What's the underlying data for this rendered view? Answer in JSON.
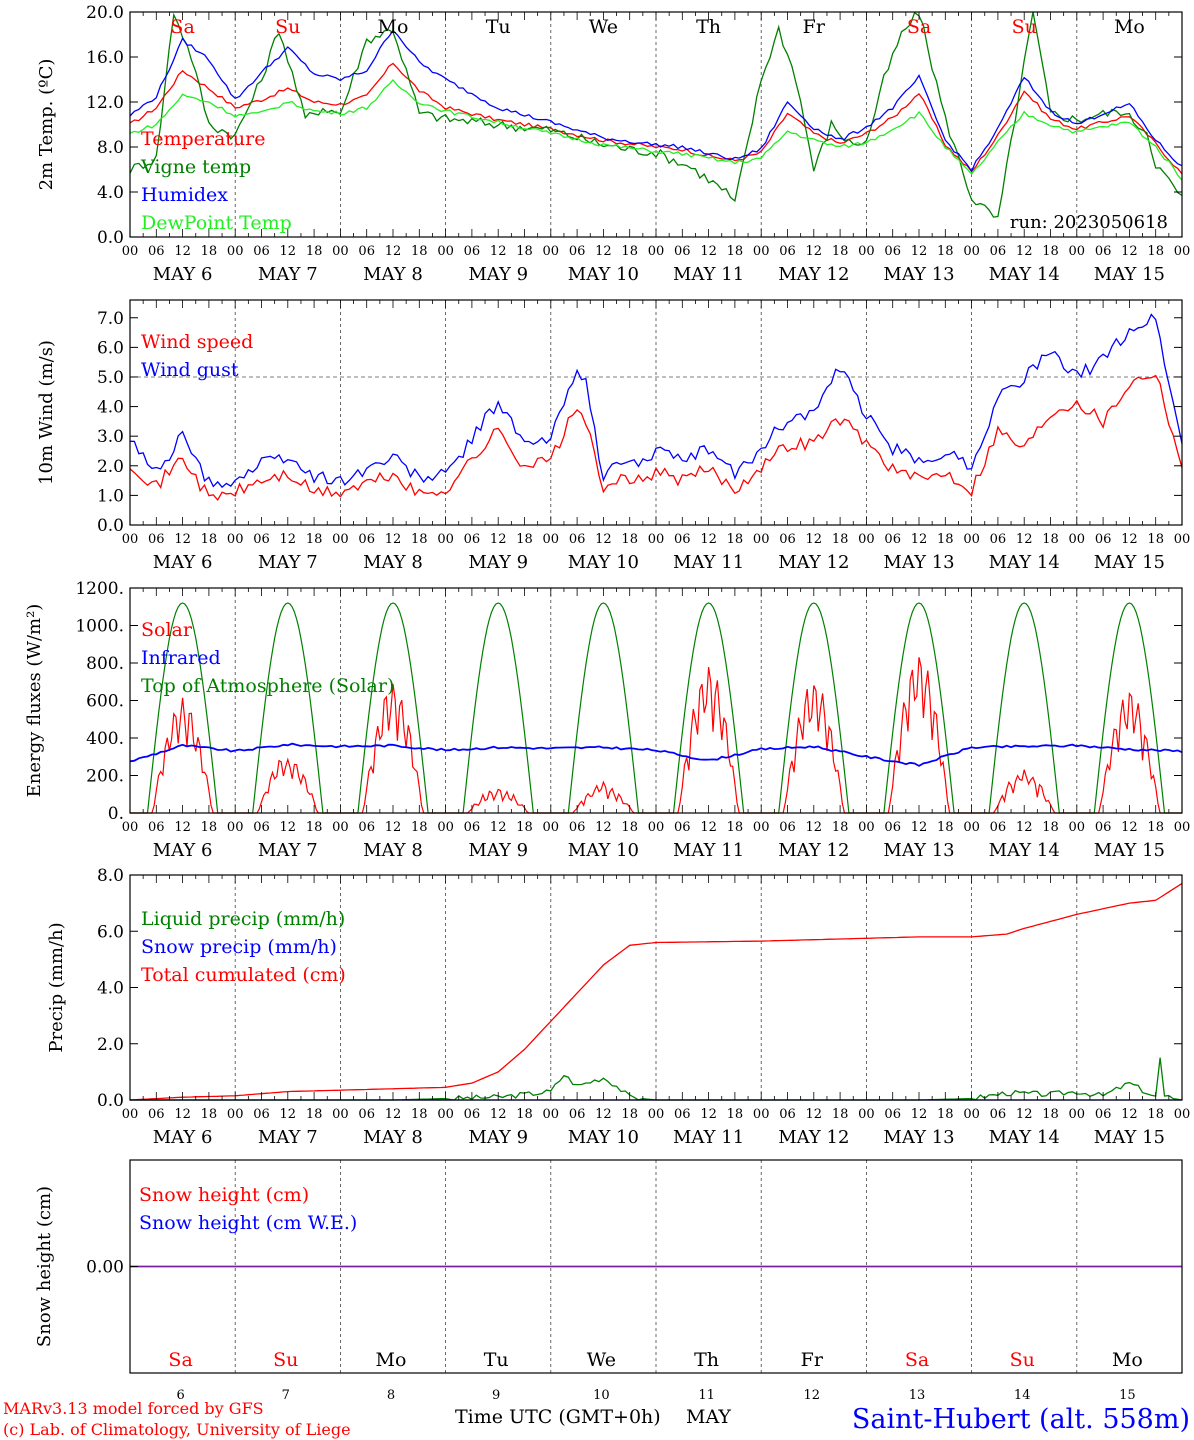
{
  "run_label": "run: 2023050618",
  "footer": {
    "model_line": "MARv3.13 model forced by GFS",
    "credit_line": "(c) Lab. of Climatology, University of Liege",
    "xaxis_title": "Time UTC (GMT+0h)",
    "month": "MAY",
    "station": "Saint-Hubert (alt. 558m)"
  },
  "days": [
    {
      "abbr": "Sa",
      "date": "6",
      "weekend": true
    },
    {
      "abbr": "Su",
      "date": "7",
      "weekend": true
    },
    {
      "abbr": "Mo",
      "date": "8",
      "weekend": false
    },
    {
      "abbr": "Tu",
      "date": "9",
      "weekend": false
    },
    {
      "abbr": "We",
      "date": "10",
      "weekend": false
    },
    {
      "abbr": "Th",
      "date": "11",
      "weekend": false
    },
    {
      "abbr": "Fr",
      "date": "12",
      "weekend": false
    },
    {
      "abbr": "Sa",
      "date": "13",
      "weekend": true
    },
    {
      "abbr": "Su",
      "date": "14",
      "weekend": true
    },
    {
      "abbr": "Mo",
      "date": "15",
      "weekend": false
    }
  ],
  "hour_ticks": [
    "00",
    "06",
    "12",
    "18"
  ],
  "date_labels": [
    "MAY  6",
    "MAY  7",
    "MAY  8",
    "MAY  9",
    "MAY 10",
    "MAY 11",
    "MAY 12",
    "MAY 13",
    "MAY 14",
    "MAY 15"
  ],
  "colors": {
    "red": "#ff0000",
    "green": "#008000",
    "blue": "#0000ff",
    "lightgreen": "#22ee22",
    "purple": "#7a1fa2"
  },
  "chart_data": [
    {
      "type": "line",
      "ylabel": "2m Temp. (ºC)",
      "ylim": [
        0,
        20
      ],
      "yticks": [
        "0.0",
        "4.0",
        "8.0",
        "12.0",
        "16.0",
        "20.0"
      ],
      "ytick_values": [
        0,
        4,
        8,
        12,
        16,
        20
      ],
      "x_unit": "hours since May 6 00 UTC",
      "series": [
        {
          "name": "Temperature",
          "color": "#ff0000",
          "x": [
            0,
            6,
            12,
            18,
            24,
            30,
            36,
            42,
            48,
            54,
            60,
            66,
            72,
            84,
            96,
            108,
            120,
            126,
            132,
            138,
            144,
            150,
            156,
            162,
            168,
            174,
            180,
            186,
            192,
            198,
            204,
            210,
            216,
            222,
            228,
            234,
            240
          ],
          "y": [
            10,
            11.5,
            14.8,
            13.2,
            11.5,
            12.2,
            13.2,
            12.0,
            11.8,
            12.5,
            15.5,
            13.0,
            11.5,
            10.4,
            9.6,
            8.6,
            8.0,
            7.8,
            7.2,
            6.8,
            7.5,
            11.0,
            9.2,
            8.3,
            9.2,
            10.6,
            12.8,
            8.2,
            5.8,
            9.0,
            13.0,
            10.5,
            9.6,
            10.2,
            10.8,
            8.3,
            5.6
          ]
        },
        {
          "name": "Vigne temp",
          "color": "#008000",
          "x": [
            0,
            6,
            10,
            14,
            18,
            24,
            30,
            34,
            40,
            44,
            48,
            54,
            60,
            66,
            72,
            84,
            96,
            108,
            114,
            120,
            128,
            136,
            138,
            144,
            148,
            152,
            156,
            160,
            164,
            168,
            172,
            176,
            180,
            186,
            192,
            198,
            206,
            210,
            216,
            220,
            226,
            232,
            234,
            240
          ],
          "y": [
            6,
            7,
            20,
            16,
            10,
            9,
            14,
            18.5,
            10.5,
            11.5,
            11.0,
            17.5,
            18.5,
            11.0,
            10.5,
            10.0,
            9.5,
            8.2,
            7.8,
            7.5,
            6.2,
            4.0,
            3.0,
            14,
            18.5,
            14,
            6,
            10,
            8.4,
            8.4,
            14,
            18,
            20,
            10.5,
            3.5,
            1.5,
            20,
            11,
            10.4,
            10.8,
            11.2,
            9.4,
            6.5,
            3.5
          ]
        },
        {
          "name": "Humidex",
          "color": "#0000ff",
          "x": [
            0,
            6,
            12,
            18,
            24,
            30,
            36,
            42,
            48,
            54,
            60,
            66,
            72,
            84,
            96,
            108,
            120,
            126,
            132,
            138,
            144,
            150,
            156,
            162,
            168,
            174,
            180,
            186,
            192,
            198,
            204,
            210,
            216,
            222,
            228,
            234,
            240
          ],
          "y": [
            10.8,
            12.5,
            17.5,
            15.8,
            12.2,
            14.6,
            16.8,
            14.5,
            14.0,
            14.8,
            18.5,
            15.5,
            14.0,
            11.5,
            10.2,
            8.8,
            8.2,
            8.0,
            7.4,
            6.9,
            7.8,
            12.0,
            9.7,
            8.6,
            9.8,
            11.5,
            14.2,
            8.6,
            6.0,
            9.6,
            14.2,
            11.2,
            10.0,
            11.0,
            11.8,
            8.6,
            6.2
          ]
        },
        {
          "name": "DewPoint Temp",
          "color": "#22ee22",
          "x": [
            0,
            6,
            12,
            18,
            24,
            30,
            36,
            42,
            48,
            54,
            60,
            66,
            72,
            84,
            96,
            108,
            120,
            126,
            132,
            138,
            144,
            150,
            156,
            162,
            168,
            174,
            180,
            186,
            192,
            198,
            204,
            210,
            216,
            222,
            228,
            234,
            240
          ],
          "y": [
            9.2,
            10.0,
            12.6,
            12.0,
            10.8,
            11.0,
            12.0,
            11.2,
            11.0,
            11.5,
            13.8,
            12.0,
            11.2,
            10.2,
            9.2,
            8.2,
            7.6,
            7.4,
            7.0,
            6.6,
            7.0,
            9.4,
            8.6,
            8.0,
            8.4,
            9.6,
            11.0,
            8.0,
            5.5,
            8.4,
            11.0,
            10.0,
            9.3,
            9.8,
            10.2,
            8.0,
            5.2
          ]
        }
      ]
    },
    {
      "type": "line",
      "ylabel": "10m Wind (m/s)",
      "ylim": [
        0,
        7.6
      ],
      "yticks": [
        "0.0",
        "1.0",
        "2.0",
        "3.0",
        "4.0",
        "5.0",
        "6.0",
        "7.0"
      ],
      "ytick_values": [
        0,
        1,
        2,
        3,
        4,
        5,
        6,
        7
      ],
      "reference_line": 5.0,
      "series": [
        {
          "name": "Wind speed",
          "color": "#ff0000",
          "x": [
            0,
            6,
            12,
            18,
            24,
            30,
            36,
            42,
            48,
            54,
            60,
            66,
            72,
            78,
            84,
            90,
            96,
            102,
            104,
            108,
            110,
            114,
            120,
            126,
            132,
            138,
            144,
            150,
            156,
            162,
            168,
            174,
            180,
            186,
            192,
            198,
            204,
            210,
            216,
            222,
            228,
            234,
            240
          ],
          "y": [
            2.1,
            1.3,
            2.3,
            0.9,
            1.1,
            1.5,
            1.7,
            1.1,
            1.1,
            1.4,
            1.7,
            1.0,
            1.2,
            2.2,
            3.2,
            2.0,
            2.2,
            4.0,
            3.5,
            1.0,
            1.6,
            1.4,
            1.8,
            1.5,
            1.9,
            1.2,
            2.0,
            2.7,
            2.8,
            3.6,
            2.8,
            1.9,
            1.5,
            1.8,
            1.2,
            3.2,
            2.6,
            3.8,
            4.2,
            3.5,
            4.8,
            5.2,
            2.0
          ]
        },
        {
          "name": "Wind gust",
          "color": "#0000ff",
          "x": [
            0,
            6,
            12,
            18,
            24,
            30,
            36,
            42,
            48,
            54,
            60,
            66,
            72,
            78,
            84,
            90,
            96,
            102,
            104,
            108,
            110,
            114,
            120,
            126,
            132,
            138,
            144,
            150,
            156,
            162,
            168,
            174,
            180,
            186,
            192,
            198,
            204,
            210,
            216,
            222,
            228,
            234,
            240
          ],
          "y": [
            2.8,
            1.8,
            3.0,
            1.4,
            1.5,
            2.1,
            2.3,
            1.6,
            1.5,
            1.9,
            2.3,
            1.6,
            1.7,
            2.9,
            4.2,
            2.7,
            2.9,
            5.4,
            4.8,
            1.4,
            2.2,
            2.0,
            2.5,
            2.1,
            2.6,
            1.7,
            2.6,
            3.6,
            3.8,
            5.3,
            3.7,
            2.6,
            2.1,
            2.5,
            2.0,
            4.3,
            5.0,
            5.8,
            5.0,
            5.6,
            6.6,
            7.0,
            2.7
          ]
        }
      ]
    },
    {
      "type": "line",
      "ylabel": "Energy fluxes (W/m²)",
      "ylim": [
        0,
        1200
      ],
      "yticks": [
        "0.",
        "200.",
        "400.",
        "600.",
        "800.",
        "1000.",
        "1200."
      ],
      "ytick_values": [
        0,
        200,
        400,
        600,
        800,
        1000,
        1200
      ],
      "series": [
        {
          "name": "Solar",
          "color": "#ff0000",
          "solar_peaks": [
            600,
            300,
            680,
            130,
            150,
            770,
            700,
            840,
            220,
            650
          ]
        },
        {
          "name": "Infrared",
          "color": "#0000ff",
          "x": [
            0,
            12,
            24,
            36,
            48,
            60,
            72,
            84,
            96,
            108,
            120,
            132,
            144,
            156,
            168,
            180,
            192,
            204,
            216,
            228,
            240
          ],
          "y": [
            275,
            360,
            330,
            365,
            355,
            360,
            335,
            350,
            345,
            350,
            335,
            280,
            340,
            355,
            300,
            255,
            350,
            355,
            360,
            340,
            330
          ]
        },
        {
          "name": "Top of Atmosphere (Solar)",
          "color": "#008000",
          "toa_peak": 1120
        }
      ]
    },
    {
      "type": "line",
      "ylabel": "Precip (mm/h)",
      "ylim": [
        0,
        8.0
      ],
      "yticks": [
        "0.0",
        "2.0",
        "4.0",
        "6.0",
        "8.0"
      ],
      "ytick_values": [
        0,
        2,
        4,
        6,
        8
      ],
      "series": [
        {
          "name": "Liquid precip (mm/h)",
          "color": "#008000",
          "x": [
            0,
            60,
            84,
            96,
            99,
            102,
            108,
            111,
            114,
            120,
            168,
            180,
            192,
            200,
            210,
            216,
            222,
            228,
            234,
            235,
            236,
            240
          ],
          "y": [
            0,
            0,
            0.1,
            0.3,
            0.9,
            0.5,
            0.8,
            0.5,
            0.1,
            0,
            0,
            0,
            0.05,
            0.25,
            0.2,
            0.3,
            0.15,
            0.6,
            0.1,
            1.5,
            0.1,
            0
          ]
        },
        {
          "name": "Snow precip (mm/h)",
          "color": "#0000ff",
          "x": [
            0,
            240
          ],
          "y": [
            0,
            0
          ]
        },
        {
          "name": "Total cumulated (cm)",
          "color": "#ff0000",
          "x": [
            0,
            12,
            24,
            36,
            48,
            60,
            72,
            78,
            84,
            90,
            96,
            102,
            108,
            114,
            120,
            144,
            168,
            180,
            192,
            200,
            204,
            216,
            228,
            234,
            240
          ],
          "y": [
            0,
            0.1,
            0.15,
            0.3,
            0.35,
            0.4,
            0.45,
            0.6,
            1.0,
            1.8,
            2.8,
            3.8,
            4.8,
            5.5,
            5.6,
            5.65,
            5.75,
            5.8,
            5.8,
            5.9,
            6.1,
            6.6,
            7.0,
            7.1,
            7.7
          ]
        }
      ]
    },
    {
      "type": "line",
      "ylabel": "Snow height (cm)",
      "yticks": [
        "0.00"
      ],
      "series": [
        {
          "name": "Snow height (cm)",
          "color": "#ff0000",
          "x": [
            0,
            240
          ],
          "y": [
            0,
            0
          ]
        },
        {
          "name": "Snow height (cm W.E.)",
          "color": "#0000ff",
          "x": [
            0,
            240
          ],
          "y": [
            0,
            0
          ]
        }
      ]
    }
  ]
}
